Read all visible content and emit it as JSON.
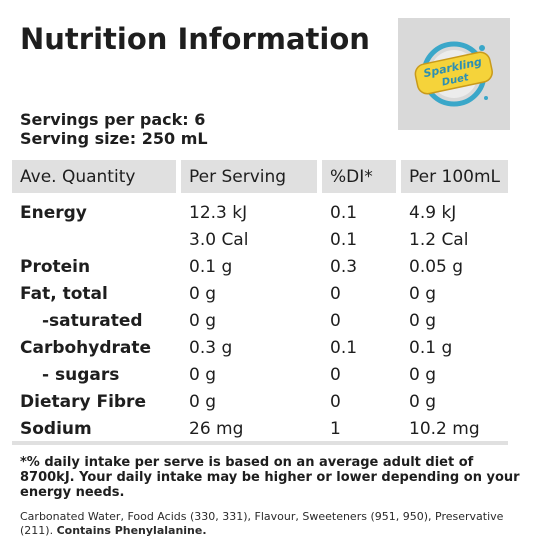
{
  "title": "Nutrition Information",
  "logo": {
    "text": "Sparkling Duet",
    "colors": {
      "badge": "#f5d33a",
      "ring": "#3aa7c9",
      "text": "#2c8fb3"
    }
  },
  "servings": {
    "per_pack": "Servings per pack: 6",
    "size": "Serving size: 250 mL"
  },
  "table": {
    "headers": [
      "Ave. Quantity",
      "Per Serving",
      "%DI*",
      "Per 100mL"
    ],
    "rows": [
      {
        "name": "Energy",
        "per_serving": "12.3 kJ",
        "di": "0.1",
        "per_100": "4.9 kJ"
      },
      {
        "name": "",
        "per_serving": "3.0 Cal",
        "di": "0.1",
        "per_100": "1.2 Cal"
      },
      {
        "name": "Protein",
        "per_serving": "0.1 g",
        "di": "0.3",
        "per_100": "0.05 g"
      },
      {
        "name": "Fat, total",
        "per_serving": "0 g",
        "di": "0",
        "per_100": "0 g"
      },
      {
        "name": "-saturated",
        "per_serving": "0 g",
        "di": "0",
        "per_100": "0 g"
      },
      {
        "name": "Carbohydrate",
        "per_serving": "0.3 g",
        "di": "0.1",
        "per_100": "0.1 g"
      },
      {
        "name": "- sugars",
        "per_serving": "0 g",
        "di": "0",
        "per_100": "0 g"
      },
      {
        "name": "Dietary Fibre",
        "per_serving": "0 g",
        "di": "0",
        "per_100": "0 g"
      },
      {
        "name": "Sodium",
        "per_serving": "26 mg",
        "di": "1",
        "per_100": "10.2 mg"
      }
    ]
  },
  "footnote": "*% daily intake per serve is based on an average adult diet of 8700kJ. Your daily intake may be higher or lower depending on your energy needs.",
  "ingredients": {
    "text": "Carbonated Water, Food Acids (330, 331), Flavour, Sweeteners (951, 950), Preservative (211).",
    "allergen": "Contains Phenylalanine."
  }
}
